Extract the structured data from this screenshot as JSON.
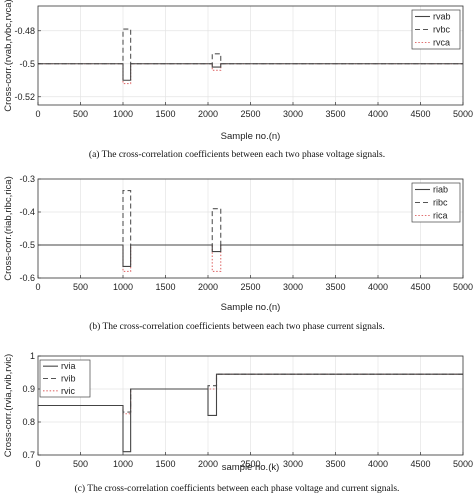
{
  "chart_data": [
    {
      "type": "line",
      "caption": "(a) The cross-correlation coefficients between each two phase voltage signals.",
      "xlabel": "Sample no.(n)",
      "ylabel": "Cross-corr.(rvab,rvbc,rvca)",
      "xlim": [
        0,
        5000
      ],
      "ylim": [
        -0.525,
        -0.465
      ],
      "xticks": [
        0,
        500,
        1000,
        1500,
        2000,
        2500,
        3000,
        3500,
        4000,
        4500,
        5000
      ],
      "yticks": [
        -0.52,
        -0.5,
        -0.48
      ],
      "grid": true,
      "legend_position": "top-right",
      "series": [
        {
          "name": "rvab",
          "color": "#444444",
          "dash": "solid",
          "x": [
            0,
            1000,
            1000,
            1090,
            1090,
            2050,
            2050,
            2150,
            2150,
            5000
          ],
          "y": [
            -0.5,
            -0.5,
            -0.51,
            -0.51,
            -0.5,
            -0.5,
            -0.502,
            -0.502,
            -0.5,
            -0.5
          ]
        },
        {
          "name": "rvbc",
          "color": "#555555",
          "dash": "dashed",
          "x": [
            0,
            1000,
            1000,
            1090,
            1090,
            2050,
            2050,
            2150,
            2150,
            5000
          ],
          "y": [
            -0.5,
            -0.5,
            -0.479,
            -0.479,
            -0.5,
            -0.5,
            -0.494,
            -0.494,
            -0.5,
            -0.5
          ]
        },
        {
          "name": "rvca",
          "color": "#e07070",
          "dash": "dotted",
          "x": [
            0,
            1000,
            1000,
            1090,
            1090,
            2050,
            2050,
            2150,
            2150,
            5000
          ],
          "y": [
            -0.5,
            -0.5,
            -0.512,
            -0.512,
            -0.5,
            -0.5,
            -0.504,
            -0.504,
            -0.5,
            -0.5
          ]
        }
      ]
    },
    {
      "type": "line",
      "caption": "(b) The cross-correlation coefficients between each two phase current signals.",
      "xlabel": "Sample no.(n)",
      "ylabel": "Cross-corr.(riab,ribc,rica)",
      "xlim": [
        0,
        5000
      ],
      "ylim": [
        -0.6,
        -0.3
      ],
      "xticks": [
        0,
        500,
        1000,
        1500,
        2000,
        2500,
        3000,
        3500,
        4000,
        4500,
        5000
      ],
      "yticks": [
        -0.6,
        -0.5,
        -0.4,
        -0.3
      ],
      "grid": true,
      "legend_position": "top-right",
      "series": [
        {
          "name": "riab",
          "color": "#444444",
          "dash": "solid",
          "x": [
            0,
            1000,
            1000,
            1090,
            1090,
            2050,
            2050,
            2150,
            2150,
            5000
          ],
          "y": [
            -0.5,
            -0.5,
            -0.565,
            -0.565,
            -0.5,
            -0.5,
            -0.52,
            -0.52,
            -0.5,
            -0.5
          ]
        },
        {
          "name": "ribc",
          "color": "#555555",
          "dash": "dashed",
          "x": [
            0,
            1000,
            1000,
            1090,
            1090,
            2050,
            2050,
            2150,
            2150,
            5000
          ],
          "y": [
            -0.5,
            -0.5,
            -0.335,
            -0.335,
            -0.5,
            -0.5,
            -0.39,
            -0.39,
            -0.5,
            -0.5
          ]
        },
        {
          "name": "rica",
          "color": "#e07070",
          "dash": "dotted",
          "x": [
            0,
            1000,
            1000,
            1090,
            1090,
            2050,
            2050,
            2150,
            2150,
            5000
          ],
          "y": [
            -0.5,
            -0.5,
            -0.58,
            -0.58,
            -0.5,
            -0.5,
            -0.58,
            -0.58,
            -0.5,
            -0.5
          ]
        }
      ]
    },
    {
      "type": "line",
      "caption": "(c) The cross-correlation coefficients between each phase voltage and current signals.",
      "xlabel": "sample no.(k)",
      "ylabel": "Cross-corr.(rvia,rvib,rvic)",
      "xlim": [
        0,
        5000
      ],
      "ylim": [
        0.7,
        1.0
      ],
      "xticks": [
        0,
        500,
        1000,
        1500,
        2000,
        2500,
        3000,
        3500,
        4000,
        4500,
        5000
      ],
      "yticks": [
        0.7,
        0.8,
        0.9,
        1.0
      ],
      "grid": true,
      "legend_position": "top-left",
      "series": [
        {
          "name": "rvia",
          "color": "#444444",
          "dash": "solid",
          "x": [
            0,
            1000,
            1000,
            1090,
            1090,
            2000,
            2000,
            2100,
            2100,
            5000
          ],
          "y": [
            0.85,
            0.85,
            0.71,
            0.71,
            0.9,
            0.9,
            0.82,
            0.82,
            0.945,
            0.945
          ]
        },
        {
          "name": "rvib",
          "color": "#555555",
          "dash": "dashed",
          "x": [
            0,
            1000,
            1000,
            1090,
            1090,
            2000,
            2000,
            2100,
            2100,
            5000
          ],
          "y": [
            0.85,
            0.85,
            0.83,
            0.83,
            0.9,
            0.9,
            0.91,
            0.91,
            0.945,
            0.945
          ]
        },
        {
          "name": "rvic",
          "color": "#e07070",
          "dash": "dotted",
          "x": [
            0,
            1000,
            1000,
            1090,
            1090,
            2000,
            2000,
            2100,
            2100,
            5000
          ],
          "y": [
            0.85,
            0.85,
            0.825,
            0.825,
            0.9,
            0.9,
            0.9,
            0.9,
            0.945,
            0.945
          ]
        }
      ]
    }
  ]
}
